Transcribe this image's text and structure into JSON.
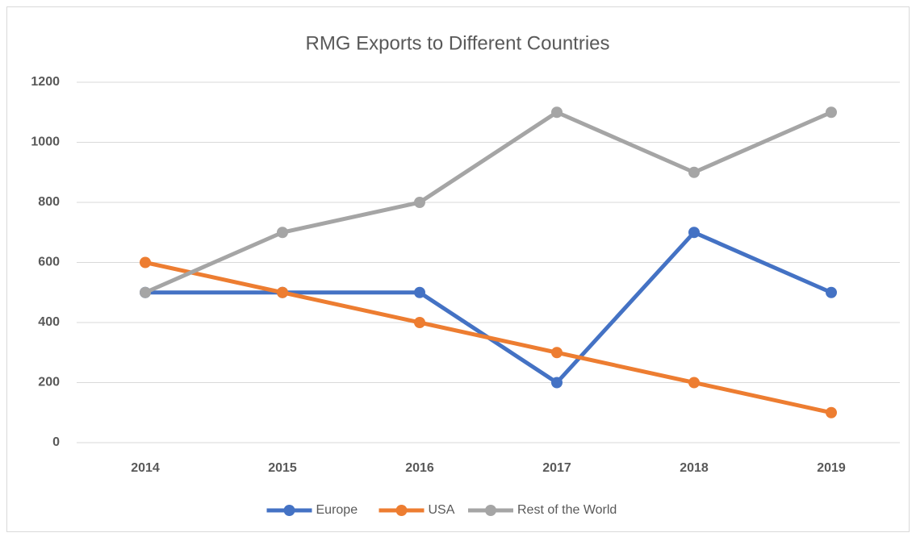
{
  "chart_data": {
    "type": "line",
    "title": "RMG Exports to Different Countries",
    "categories": [
      "2014",
      "2015",
      "2016",
      "2017",
      "2018",
      "2019"
    ],
    "series": [
      {
        "name": "Europe",
        "color": "#4472c4",
        "values": [
          500,
          500,
          500,
          200,
          700,
          500
        ]
      },
      {
        "name": "USA",
        "color": "#ed7d31",
        "values": [
          600,
          500,
          400,
          300,
          200,
          100
        ]
      },
      {
        "name": "Rest of the World",
        "color": "#a5a5a5",
        "values": [
          500,
          700,
          800,
          1100,
          900,
          1100
        ]
      }
    ],
    "ylim": [
      0,
      1200
    ],
    "yticks": [
      0,
      200,
      400,
      600,
      800,
      1000,
      1200
    ],
    "grid": true,
    "legend": "bottom"
  }
}
